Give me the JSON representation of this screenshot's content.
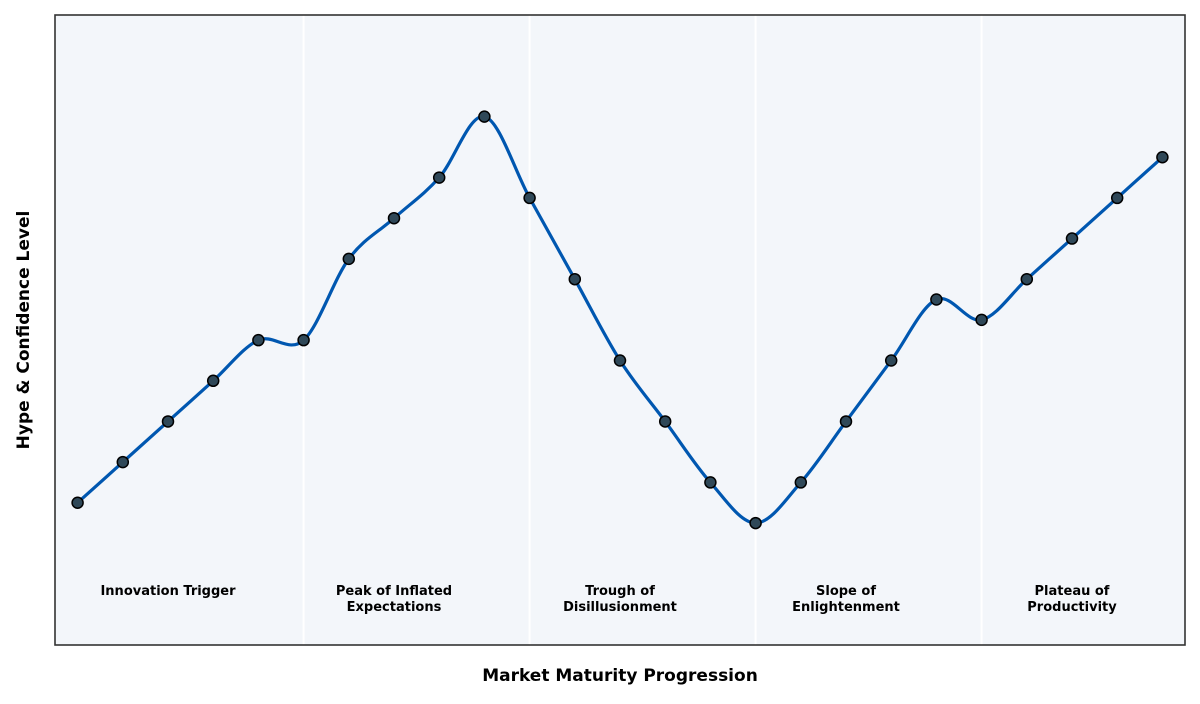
{
  "chart_data": {
    "type": "line",
    "title": "",
    "xlabel": "Market Maturity Progression",
    "ylabel": "Hype & Confidence Level",
    "x": [
      0,
      1,
      2,
      3,
      4,
      5,
      6,
      7,
      8,
      9,
      10,
      11,
      12,
      13,
      14,
      15,
      16,
      17,
      18,
      19,
      20,
      21,
      22,
      23,
      24
    ],
    "series": [
      {
        "values": [
          10,
          20,
          30,
          40,
          50,
          50,
          70,
          80,
          90,
          105,
          85,
          65,
          45,
          30,
          15,
          5,
          15,
          30,
          45,
          60,
          55,
          65,
          75,
          85,
          95
        ]
      }
    ],
    "xlim": [
      -0.5,
      24.5
    ],
    "ylim": [
      -25,
      130
    ],
    "grid": false,
    "phases": [
      {
        "label": [
          "Innovation Trigger"
        ],
        "start": -0.5,
        "end": 5
      },
      {
        "label": [
          "Peak of Inflated",
          "Expectations"
        ],
        "start": 5,
        "end": 10
      },
      {
        "label": [
          "Trough of",
          "Disillusionment"
        ],
        "start": 10,
        "end": 15
      },
      {
        "label": [
          "Slope of",
          "Enlightenment"
        ],
        "start": 15,
        "end": 20
      },
      {
        "label": [
          "Plateau of",
          "Productivity"
        ],
        "start": 20,
        "end": 24.5
      }
    ],
    "colors": {
      "line": "#0057b0",
      "marker_fill": "#2f4858",
      "marker_edge": "#000000",
      "plot_background": "#f3f6fa",
      "phase_divider": "#ffffff",
      "frame": "#333333"
    }
  }
}
